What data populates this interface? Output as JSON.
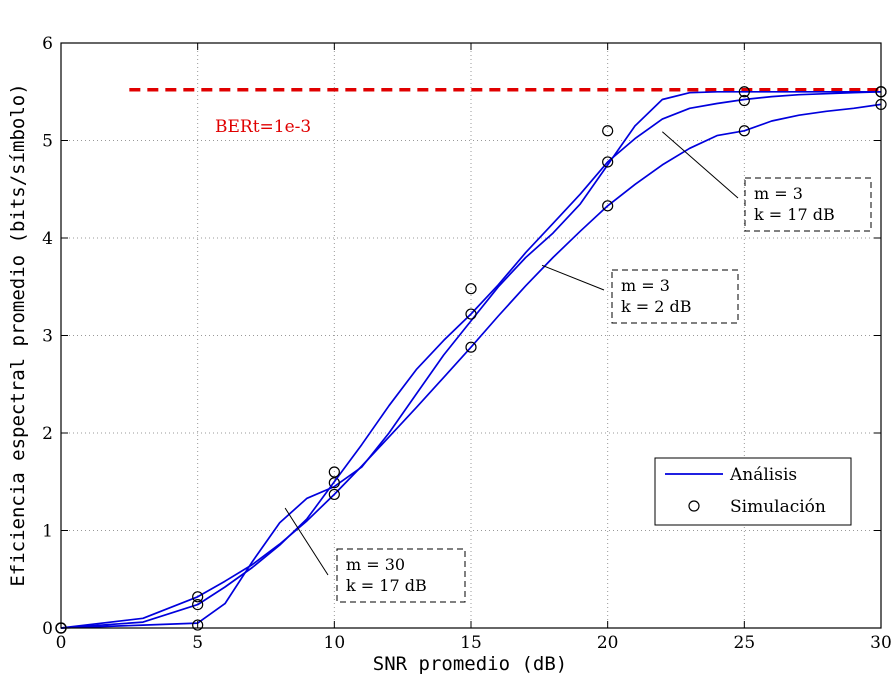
{
  "chart_data": {
    "type": "line",
    "xlabel": "SNR promedio (dB)",
    "ylabel": "Eficiencia espectral promedio (bits/símbolo)",
    "xlim": [
      0,
      30
    ],
    "ylim": [
      0,
      6
    ],
    "xticks": [
      0,
      5,
      10,
      15,
      20,
      25,
      30
    ],
    "yticks": [
      0,
      1,
      2,
      3,
      4,
      5,
      6
    ],
    "grid": true,
    "legend_position": "bottom-right",
    "legend": [
      {
        "label": "Análisis",
        "marker": "line",
        "color": "#0000dd"
      },
      {
        "label": "Simulación",
        "marker": "circle",
        "color": "#000000"
      }
    ],
    "reference_line": {
      "label": "BERt=1e-3",
      "y": 5.52,
      "x_start": 2.5,
      "x_end": 30,
      "color": "#e00000"
    },
    "series": [
      {
        "analysis": {
          "x": [
            0,
            3,
            5,
            6,
            7,
            8,
            9,
            10,
            11,
            12,
            13,
            14,
            15,
            16,
            17,
            18,
            19,
            20,
            21,
            22,
            23,
            24,
            25,
            26,
            27,
            28,
            29,
            30
          ],
          "y": [
            0,
            0.03,
            0.05,
            0.25,
            0.68,
            1.08,
            1.33,
            1.45,
            1.65,
            2.0,
            2.4,
            2.8,
            3.15,
            3.5,
            3.8,
            4.05,
            4.35,
            4.75,
            5.15,
            5.42,
            5.49,
            5.5,
            5.5,
            5.5,
            5.5,
            5.5,
            5.5,
            5.5
          ]
        },
        "simulation": {
          "x": [
            0,
            5,
            10,
            15,
            20,
            25,
            30
          ],
          "y": [
            0,
            0.03,
            1.49,
            3.48,
            5.1,
            5.5,
            5.5
          ]
        }
      },
      {
        "analysis": {
          "x": [
            0,
            3,
            5,
            6,
            7,
            8,
            9,
            10,
            11,
            12,
            13,
            14,
            15,
            16,
            17,
            18,
            19,
            20,
            21,
            22,
            23,
            24,
            25,
            26,
            27,
            28,
            29,
            30
          ],
          "y": [
            0,
            0.06,
            0.24,
            0.42,
            0.62,
            0.85,
            1.12,
            1.5,
            1.88,
            2.28,
            2.65,
            2.95,
            3.22,
            3.52,
            3.85,
            4.15,
            4.45,
            4.78,
            5.02,
            5.22,
            5.33,
            5.38,
            5.42,
            5.45,
            5.47,
            5.48,
            5.49,
            5.5
          ]
        },
        "simulation": {
          "x": [
            0,
            5,
            10,
            15,
            20,
            25,
            30
          ],
          "y": [
            0,
            0.24,
            1.6,
            3.22,
            4.78,
            5.41,
            5.5
          ]
        }
      },
      {
        "analysis": {
          "x": [
            0,
            3,
            5,
            6,
            7,
            8,
            9,
            10,
            11,
            12,
            13,
            14,
            15,
            16,
            17,
            18,
            19,
            20,
            21,
            22,
            23,
            24,
            25,
            26,
            27,
            28,
            29,
            30
          ],
          "y": [
            0,
            0.1,
            0.32,
            0.48,
            0.65,
            0.86,
            1.1,
            1.37,
            1.66,
            1.96,
            2.26,
            2.57,
            2.88,
            3.2,
            3.51,
            3.8,
            4.07,
            4.33,
            4.55,
            4.75,
            4.92,
            5.05,
            5.1,
            5.2,
            5.26,
            5.3,
            5.33,
            5.37
          ]
        },
        "simulation": {
          "x": [
            0,
            5,
            10,
            15,
            20,
            25,
            30
          ],
          "y": [
            0,
            0.32,
            1.37,
            2.88,
            4.33,
            5.1,
            5.37
          ]
        }
      }
    ],
    "annotations": [
      {
        "lines": [
          "m = 30",
          "k = 17 dB"
        ],
        "arrow_to": [
          8.2,
          1.23
        ]
      },
      {
        "lines": [
          "m = 3",
          "k = 2 dB"
        ],
        "arrow_to": [
          17.6,
          3.72
        ]
      },
      {
        "lines": [
          "m = 3",
          "k = 17 dB"
        ],
        "arrow_to": [
          22.0,
          5.09
        ]
      }
    ]
  }
}
